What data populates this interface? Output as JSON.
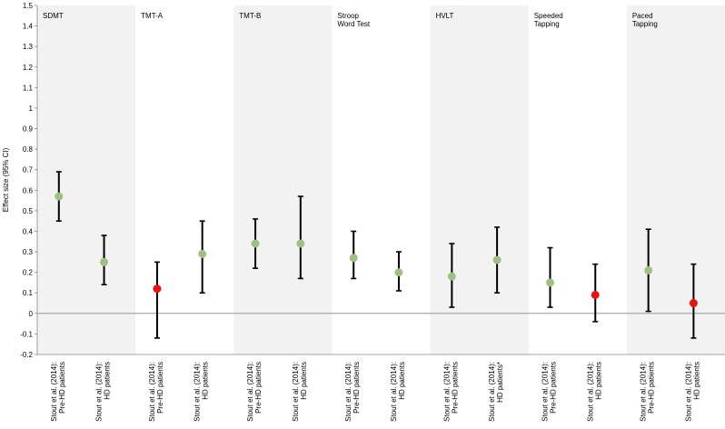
{
  "chart_data": {
    "type": "scatter",
    "title": "",
    "xlabel": "",
    "ylabel": "Effect size (95% CI)",
    "ylim": [
      -0.2,
      1.5
    ],
    "ytick_step": 0.1,
    "yticks": [
      "-0.2",
      "-0.1",
      "0",
      "0.1",
      "0.2",
      "0.3",
      "0.4",
      "0.5",
      "0.6",
      "0.7",
      "0.8",
      "0.9",
      "1",
      "1.1",
      "1.2",
      "1.3",
      "1.4",
      "1.5"
    ],
    "grid": false,
    "colors": {
      "significant": "#9dc183",
      "nonsignificant": "#ee1111",
      "panel_shade": "#f2f2f2",
      "error_bar": "#000000"
    },
    "panels": [
      {
        "label": [
          "SDMT"
        ],
        "shaded": true
      },
      {
        "label": [
          "TMT-A"
        ],
        "shaded": false
      },
      {
        "label": [
          "TMT-B"
        ],
        "shaded": true
      },
      {
        "label": [
          "Stroop",
          "Word Test"
        ],
        "shaded": false
      },
      {
        "label": [
          "HVLT"
        ],
        "shaded": true
      },
      {
        "label": [
          "Speeded",
          "Tapping"
        ],
        "shaded": false
      },
      {
        "label": [
          "Paced",
          "Tapping"
        ],
        "shaded": true
      }
    ],
    "points": [
      {
        "panel": 0,
        "label": [
          "Stout et al. (2014):",
          "Pre-HD patients"
        ],
        "value": 0.57,
        "ci_low": 0.45,
        "ci_high": 0.69,
        "significant": true
      },
      {
        "panel": 0,
        "label": [
          "Stout et al. (2014):",
          "HD patients"
        ],
        "value": 0.25,
        "ci_low": 0.14,
        "ci_high": 0.38,
        "significant": true
      },
      {
        "panel": 1,
        "label": [
          "Stout et al. (2014):",
          "Pre-HD patients"
        ],
        "value": 0.12,
        "ci_low": -0.12,
        "ci_high": 0.25,
        "significant": false
      },
      {
        "panel": 1,
        "label": [
          "Stout et al. (2014):",
          "HD patients"
        ],
        "value": 0.29,
        "ci_low": 0.1,
        "ci_high": 0.45,
        "significant": true
      },
      {
        "panel": 2,
        "label": [
          "Stout et al. (2014):",
          "Pre-HD patients"
        ],
        "value": 0.34,
        "ci_low": 0.22,
        "ci_high": 0.46,
        "significant": true
      },
      {
        "panel": 2,
        "label": [
          "Stout et al. (2014):",
          "HD patients"
        ],
        "value": 0.34,
        "ci_low": 0.17,
        "ci_high": 0.57,
        "significant": true
      },
      {
        "panel": 3,
        "label": [
          "Stout et al. (2014):",
          "Pre-HD patients"
        ],
        "value": 0.27,
        "ci_low": 0.17,
        "ci_high": 0.4,
        "significant": true
      },
      {
        "panel": 3,
        "label": [
          "Stout et al. (2014):",
          "HD patients"
        ],
        "value": 0.2,
        "ci_low": 0.11,
        "ci_high": 0.3,
        "significant": true
      },
      {
        "panel": 4,
        "label": [
          "Stout et al. (2014):",
          "Pre-HD patients"
        ],
        "value": 0.18,
        "ci_low": 0.03,
        "ci_high": 0.34,
        "significant": true
      },
      {
        "panel": 4,
        "label": [
          "Stout et al. (2014):",
          "HD patients*"
        ],
        "value": 0.26,
        "ci_low": 0.1,
        "ci_high": 0.42,
        "significant": true
      },
      {
        "panel": 5,
        "label": [
          "Stout et al. (2014):",
          "Pre-HD patients"
        ],
        "value": 0.15,
        "ci_low": 0.03,
        "ci_high": 0.32,
        "significant": true
      },
      {
        "panel": 5,
        "label": [
          "Stout et al. (2014):",
          "HD patients"
        ],
        "value": 0.09,
        "ci_low": -0.04,
        "ci_high": 0.24,
        "significant": false
      },
      {
        "panel": 6,
        "label": [
          "Stout et al. (2014):",
          "Pre-HD patients"
        ],
        "value": 0.21,
        "ci_low": 0.01,
        "ci_high": 0.41,
        "significant": true
      },
      {
        "panel": 6,
        "label": [
          "Stout et al. (2014):",
          "HD patients"
        ],
        "value": 0.05,
        "ci_low": -0.12,
        "ci_high": 0.24,
        "significant": false
      }
    ]
  }
}
